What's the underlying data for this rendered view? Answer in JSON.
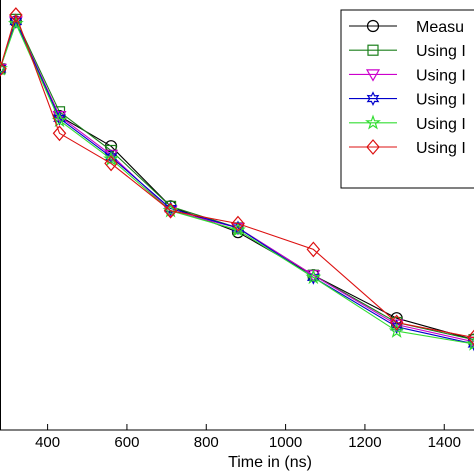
{
  "chart_data": {
    "type": "line",
    "xlabel": "Time in (ns)",
    "ylabel": "",
    "xlim": [
      280,
      1475
    ],
    "ylim": [
      0,
      100
    ],
    "x_ticks": [
      400,
      600,
      800,
      1000,
      1200,
      1400
    ],
    "x_tick_labels": [
      "400",
      "600",
      "800",
      "1000",
      "1200",
      "1400"
    ],
    "x": [
      280,
      320,
      430,
      560,
      710,
      880,
      1070,
      1280,
      1475
    ],
    "legend_position": "top-right",
    "series": [
      {
        "name": "Measu",
        "color": "#000000",
        "marker": "circle",
        "values": [
          84,
          95,
          73,
          66,
          52,
          46,
          36,
          26,
          21
        ]
      },
      {
        "name": "Using I",
        "color": "#1a7f1a",
        "marker": "square",
        "values": [
          84,
          95.5,
          74,
          65,
          52,
          47,
          36,
          25,
          21
        ]
      },
      {
        "name": "Using I",
        "color": "#cc00cc",
        "marker": "triangle-down",
        "values": [
          84,
          95,
          73,
          64,
          51,
          47,
          36,
          24.5,
          20.5
        ]
      },
      {
        "name": "Using I",
        "color": "#0000cc",
        "marker": "hexagram",
        "values": [
          84,
          95,
          72.5,
          63.5,
          51.5,
          47,
          35.5,
          24,
          20
        ]
      },
      {
        "name": "Using I",
        "color": "#33dd33",
        "marker": "pentagram",
        "values": [
          84,
          94.5,
          72,
          63,
          51,
          46.5,
          35.5,
          23,
          20
        ]
      },
      {
        "name": "Using I",
        "color": "#dd1111",
        "marker": "diamond",
        "values": [
          84,
          96.5,
          69,
          62,
          51,
          48,
          42,
          25,
          21.5
        ]
      }
    ]
  }
}
